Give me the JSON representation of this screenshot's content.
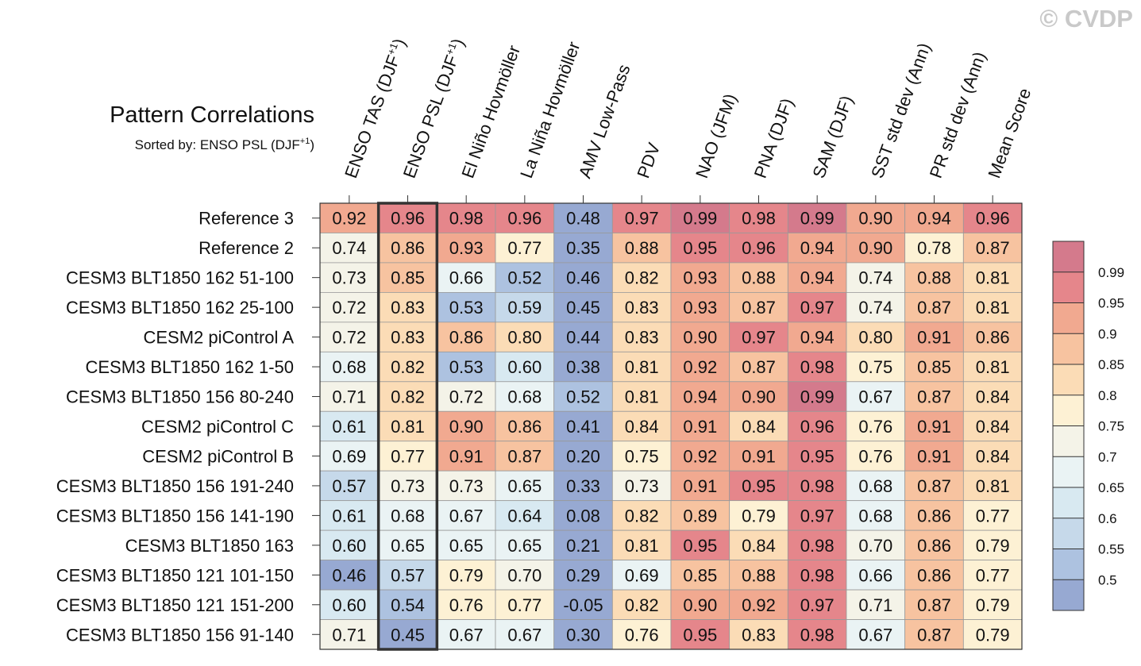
{
  "copyright": "© CVDP",
  "chart_data": {
    "type": "heatmap",
    "title": "Pattern Correlations",
    "subtitle_prefix": "Sorted by: ENSO PSL (DJF",
    "subtitle_sup": "+1",
    "subtitle_suffix": ")",
    "sorted_column_index": 1,
    "columns": [
      {
        "label": "ENSO TAS (DJF",
        "sup": "+1",
        "suffix": ")"
      },
      {
        "label": "ENSO PSL (DJF",
        "sup": "+1",
        "suffix": ")"
      },
      {
        "label": "El Niño Hovmöller",
        "sup": "",
        "suffix": ""
      },
      {
        "label": "La Niña Hovmöller",
        "sup": "",
        "suffix": ""
      },
      {
        "label": "AMV Low-Pass",
        "sup": "",
        "suffix": ""
      },
      {
        "label": "PDV",
        "sup": "",
        "suffix": ""
      },
      {
        "label": "NAO (JFM)",
        "sup": "",
        "suffix": ""
      },
      {
        "label": "PNA (DJF)",
        "sup": "",
        "suffix": ""
      },
      {
        "label": "SAM (DJF)",
        "sup": "",
        "suffix": ""
      },
      {
        "label": "SST std dev (Ann)",
        "sup": "",
        "suffix": ""
      },
      {
        "label": "PR std dev (Ann)",
        "sup": "",
        "suffix": ""
      },
      {
        "label": "Mean Score",
        "sup": "",
        "suffix": ""
      }
    ],
    "rows": [
      {
        "label": "Reference 3",
        "values": [
          "0.92",
          "0.96",
          "0.98",
          "0.96",
          "0.48",
          "0.97",
          "0.99",
          "0.98",
          "0.99",
          "0.90",
          "0.94",
          "0.96"
        ]
      },
      {
        "label": "Reference 2",
        "values": [
          "0.74",
          "0.86",
          "0.93",
          "0.77",
          "0.35",
          "0.88",
          "0.95",
          "0.96",
          "0.94",
          "0.90",
          "0.78",
          "0.87"
        ]
      },
      {
        "label": "CESM3 BLT1850 162 51-100",
        "values": [
          "0.73",
          "0.85",
          "0.66",
          "0.52",
          "0.46",
          "0.82",
          "0.93",
          "0.88",
          "0.94",
          "0.74",
          "0.88",
          "0.81"
        ]
      },
      {
        "label": "CESM3 BLT1850 162 25-100",
        "values": [
          "0.72",
          "0.83",
          "0.53",
          "0.59",
          "0.45",
          "0.83",
          "0.93",
          "0.87",
          "0.97",
          "0.74",
          "0.87",
          "0.81"
        ]
      },
      {
        "label": "CESM2 piControl A",
        "values": [
          "0.72",
          "0.83",
          "0.86",
          "0.80",
          "0.44",
          "0.83",
          "0.90",
          "0.97",
          "0.94",
          "0.80",
          "0.91",
          "0.86"
        ]
      },
      {
        "label": "CESM3 BLT1850 162 1-50",
        "values": [
          "0.68",
          "0.82",
          "0.53",
          "0.60",
          "0.38",
          "0.81",
          "0.92",
          "0.87",
          "0.98",
          "0.75",
          "0.85",
          "0.81"
        ]
      },
      {
        "label": "CESM3 BLT1850 156 80-240",
        "values": [
          "0.71",
          "0.82",
          "0.72",
          "0.68",
          "0.52",
          "0.81",
          "0.94",
          "0.90",
          "0.99",
          "0.67",
          "0.87",
          "0.84"
        ]
      },
      {
        "label": "CESM2 piControl C",
        "values": [
          "0.61",
          "0.81",
          "0.90",
          "0.86",
          "0.41",
          "0.84",
          "0.91",
          "0.84",
          "0.96",
          "0.76",
          "0.91",
          "0.84"
        ]
      },
      {
        "label": "CESM2 piControl B",
        "values": [
          "0.69",
          "0.77",
          "0.91",
          "0.87",
          "0.20",
          "0.75",
          "0.92",
          "0.91",
          "0.95",
          "0.76",
          "0.91",
          "0.84"
        ]
      },
      {
        "label": "CESM3 BLT1850 156 191-240",
        "values": [
          "0.57",
          "0.73",
          "0.73",
          "0.65",
          "0.33",
          "0.73",
          "0.91",
          "0.95",
          "0.98",
          "0.68",
          "0.87",
          "0.81"
        ]
      },
      {
        "label": "CESM3 BLT1850 156 141-190",
        "values": [
          "0.61",
          "0.68",
          "0.67",
          "0.64",
          "0.08",
          "0.82",
          "0.89",
          "0.79",
          "0.97",
          "0.68",
          "0.86",
          "0.77"
        ]
      },
      {
        "label": "CESM3 BLT1850 163",
        "values": [
          "0.60",
          "0.65",
          "0.65",
          "0.65",
          "0.21",
          "0.81",
          "0.95",
          "0.84",
          "0.98",
          "0.70",
          "0.86",
          "0.79"
        ]
      },
      {
        "label": "CESM3 BLT1850 121 101-150",
        "values": [
          "0.46",
          "0.57",
          "0.79",
          "0.70",
          "0.29",
          "0.69",
          "0.85",
          "0.88",
          "0.98",
          "0.66",
          "0.86",
          "0.77"
        ]
      },
      {
        "label": "CESM3 BLT1850 121 151-200",
        "values": [
          "0.60",
          "0.54",
          "0.76",
          "0.77",
          "-0.05",
          "0.82",
          "0.90",
          "0.92",
          "0.97",
          "0.71",
          "0.87",
          "0.79"
        ]
      },
      {
        "label": "CESM3 BLT1850 156 91-140",
        "values": [
          "0.71",
          "0.45",
          "0.67",
          "0.67",
          "0.30",
          "0.76",
          "0.95",
          "0.83",
          "0.98",
          "0.67",
          "0.87",
          "0.79"
        ]
      }
    ],
    "colorbar": {
      "levels": [
        0.5,
        0.55,
        0.6,
        0.65,
        0.7,
        0.75,
        0.8,
        0.85,
        0.9,
        0.95,
        0.99
      ],
      "labels": [
        "0.5",
        "0.55",
        "0.6",
        "0.65",
        "0.7",
        "0.75",
        "0.8",
        "0.85",
        "0.9",
        "0.95",
        "0.99"
      ],
      "colors": [
        "#97a9d2",
        "#adc2e0",
        "#c6d9ea",
        "#d8e9f1",
        "#eaf3f4",
        "#f4f3e8",
        "#fdf1d4",
        "#fbdcb6",
        "#f7c3a0",
        "#f1a990",
        "#e5868b",
        "#d47a8c"
      ]
    }
  }
}
